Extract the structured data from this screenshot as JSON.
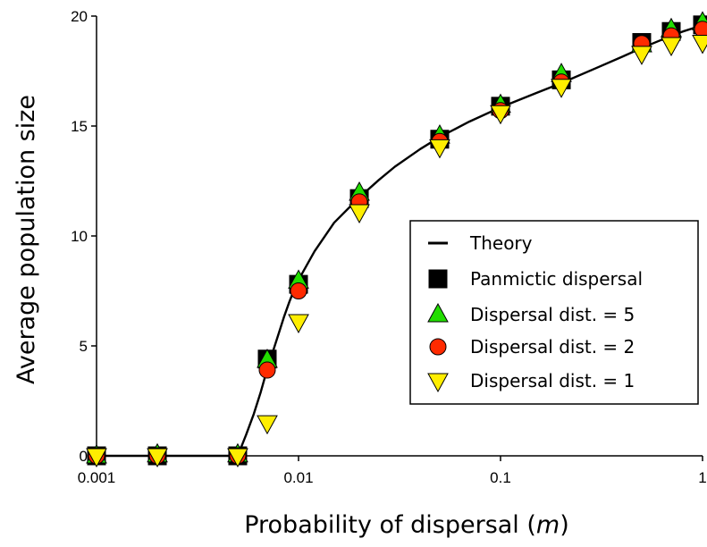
{
  "chart_data": {
    "type": "scatter",
    "xscale": "log",
    "xlim": [
      0.001,
      1
    ],
    "ylim": [
      0,
      20
    ],
    "xticks": [
      0.001,
      0.01,
      0.1,
      1
    ],
    "xtick_labels": [
      "0.001",
      "0.01",
      "0.1",
      "1"
    ],
    "yticks": [
      0,
      5,
      10,
      15,
      20
    ],
    "ytick_labels": [
      "0",
      "5",
      "10",
      "15",
      "20"
    ],
    "xlabel_prefix": "Probability of dispersal (",
    "xlabel_var": "m",
    "xlabel_suffix": ")",
    "ylabel": "Average population size",
    "grid": false,
    "legend_position": "center-right",
    "theory": {
      "name": "Theory",
      "x": [
        0.005,
        0.0055,
        0.006,
        0.0065,
        0.007,
        0.0075,
        0.008,
        0.0085,
        0.009,
        0.0095,
        0.01,
        0.012,
        0.015,
        0.02,
        0.025,
        0.03,
        0.04,
        0.05,
        0.07,
        0.1,
        0.15,
        0.2,
        0.3,
        0.4,
        0.5,
        0.6,
        0.7,
        0.8,
        0.9,
        1.0
      ],
      "y": [
        0,
        0.95,
        1.9,
        2.9,
        3.95,
        4.8,
        5.6,
        6.35,
        7.0,
        7.55,
        8.0,
        9.3,
        10.6,
        11.75,
        12.55,
        13.15,
        13.95,
        14.5,
        15.2,
        15.85,
        16.5,
        16.95,
        17.65,
        18.15,
        18.55,
        18.85,
        19.1,
        19.3,
        19.45,
        19.55
      ],
      "color": "#000000"
    },
    "series": [
      {
        "name": "Panmictic dispersal",
        "marker": "square",
        "color": "#000000",
        "x": [
          0.001,
          0.002,
          0.005,
          0.007,
          0.01,
          0.02,
          0.05,
          0.1,
          0.2,
          0.5,
          0.7,
          1.0
        ],
        "y": [
          0,
          0,
          0,
          4.4,
          7.8,
          11.7,
          14.4,
          15.9,
          17.1,
          18.8,
          19.3,
          19.6
        ]
      },
      {
        "name": "Dispersal dist. = 5",
        "marker": "triangle-up",
        "color": "#22dd00",
        "x": [
          0.001,
          0.002,
          0.005,
          0.007,
          0.01,
          0.02,
          0.05,
          0.1,
          0.2,
          0.5,
          0.7,
          1.0
        ],
        "y": [
          0,
          0.05,
          0.05,
          4.35,
          7.95,
          11.95,
          14.55,
          15.95,
          17.35,
          18.7,
          19.4,
          19.7
        ]
      },
      {
        "name": "Dispersal dist. = 2",
        "marker": "circle",
        "color": "#ff2a00",
        "x": [
          0.001,
          0.002,
          0.005,
          0.007,
          0.01,
          0.02,
          0.05,
          0.1,
          0.2,
          0.5,
          0.7,
          1.0
        ],
        "y": [
          0,
          0,
          0,
          3.9,
          7.5,
          11.55,
          14.3,
          15.7,
          17.0,
          18.75,
          19.1,
          19.4
        ]
      },
      {
        "name": "Dispersal dist. = 1",
        "marker": "triangle-down",
        "color": "#ffee00",
        "x": [
          0.001,
          0.002,
          0.005,
          0.007,
          0.01,
          0.02,
          0.05,
          0.1,
          0.2,
          0.5,
          0.7,
          1.0
        ],
        "y": [
          0,
          0,
          0,
          1.5,
          6.1,
          11.1,
          14.05,
          15.6,
          16.8,
          18.3,
          18.7,
          18.8
        ]
      }
    ]
  }
}
